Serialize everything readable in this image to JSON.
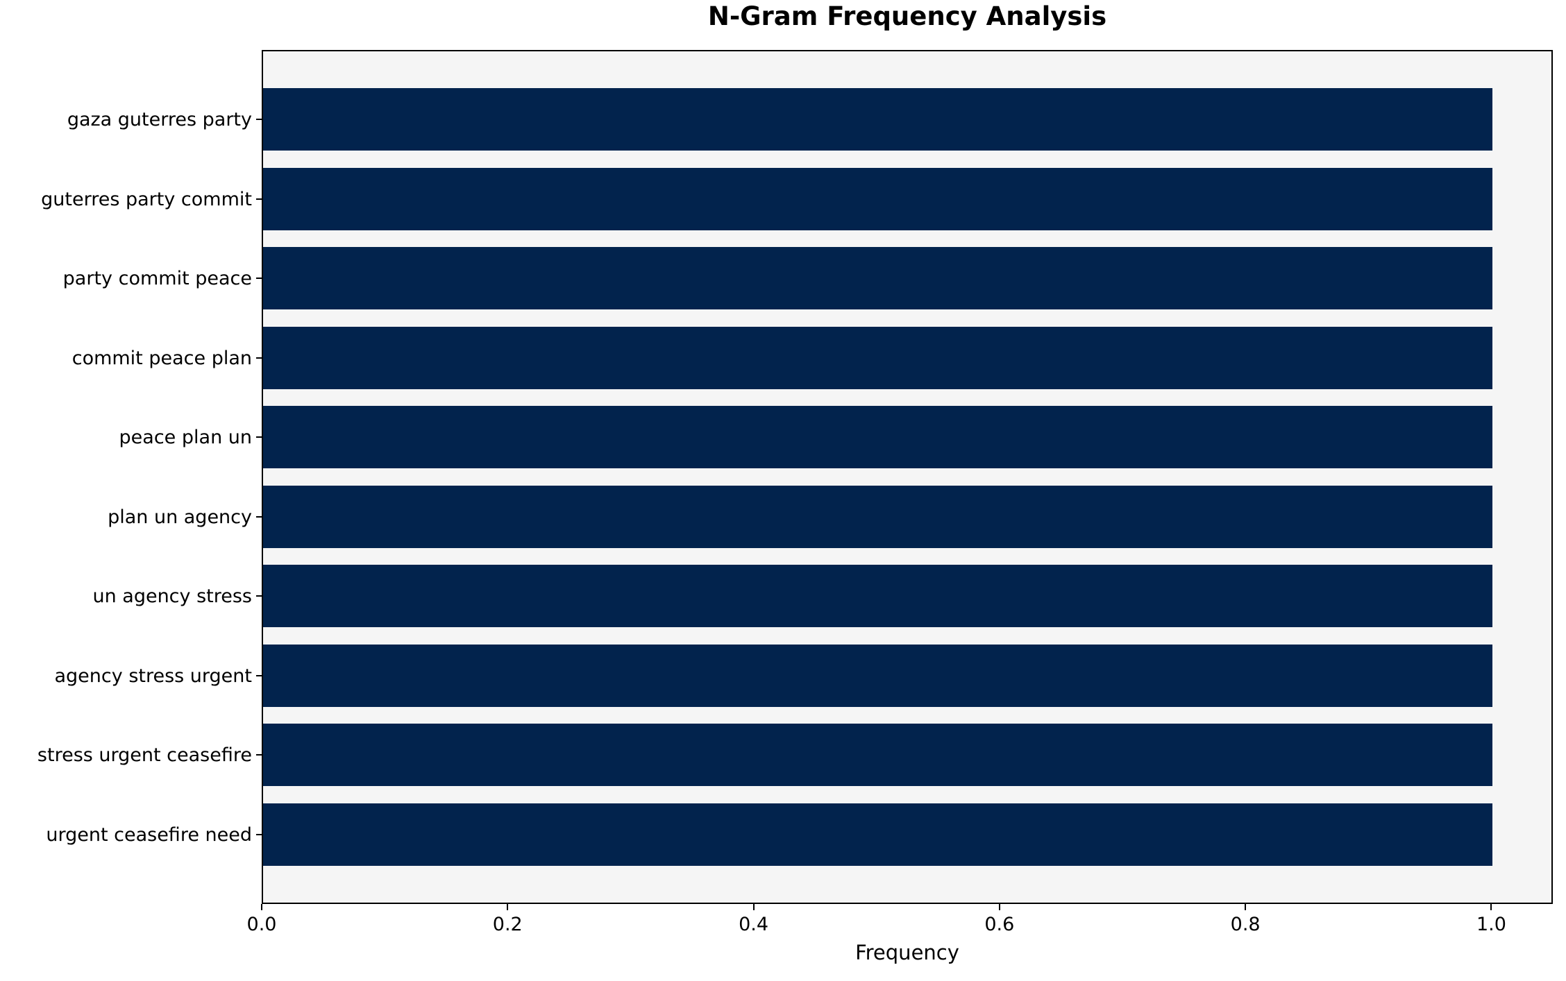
{
  "figure": {
    "background": "#ffffff",
    "spine_color": "#000000"
  },
  "chart_data": {
    "type": "bar",
    "orientation": "horizontal",
    "title": "N-Gram Frequency Analysis",
    "xlabel": "Frequency",
    "ylabel": "",
    "categories": [
      "gaza guterres party",
      "guterres party commit",
      "party commit peace",
      "commit peace plan",
      "peace plan un",
      "plan un agency",
      "un agency stress",
      "agency stress urgent",
      "stress urgent ceasefire",
      "urgent ceasefire need"
    ],
    "values": [
      1.0,
      1.0,
      1.0,
      1.0,
      1.0,
      1.0,
      1.0,
      1.0,
      1.0,
      1.0
    ],
    "xlim": [
      0,
      1.05
    ],
    "xticks": [
      0.0,
      0.2,
      0.4,
      0.6,
      0.8,
      1.0
    ],
    "xtick_labels": [
      "0.0",
      "0.2",
      "0.4",
      "0.6",
      "0.8",
      "1.0"
    ],
    "grid": false,
    "legend": "none",
    "bar_color": "#02234d",
    "plot_background": "#f5f5f5"
  }
}
